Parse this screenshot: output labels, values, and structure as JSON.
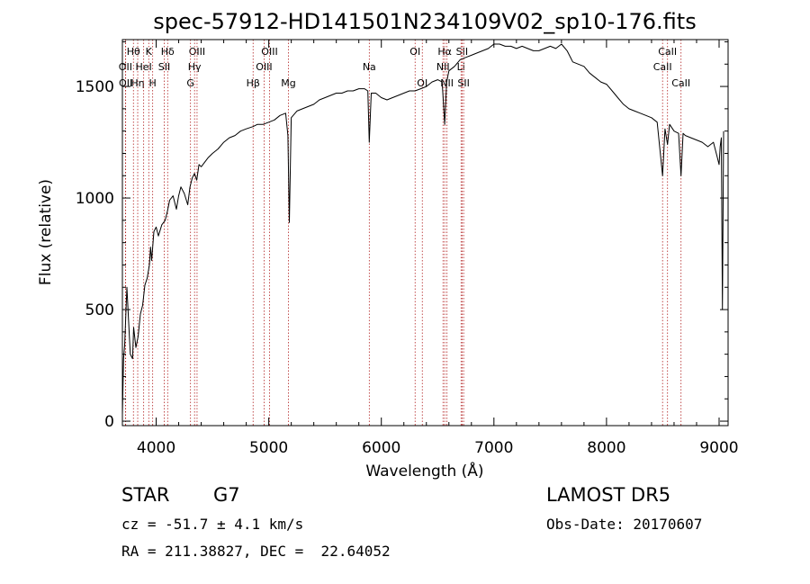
{
  "chart_data": {
    "type": "line",
    "title": "spec-57912-HD141501N234109V02_sp10-176.fits",
    "xlabel": "Wavelength (Å)",
    "ylabel": "Flux (relative)",
    "xlim": [
      3700,
      9080
    ],
    "ylim": [
      -20,
      1710
    ],
    "xticks": [
      4000,
      5000,
      6000,
      7000,
      8000,
      9000
    ],
    "yticks": [
      0,
      500,
      1000,
      1500
    ],
    "grid": false,
    "line_color": "#000000",
    "marker_color": "#b22222",
    "series": [
      {
        "x": [
          3700,
          3710,
          3720,
          3740,
          3760,
          3770,
          3790,
          3800,
          3820,
          3840,
          3860,
          3880,
          3900,
          3920,
          3940,
          3950,
          3960,
          3980,
          4000,
          4020,
          4050,
          4080,
          4100,
          4120,
          4150,
          4180,
          4200,
          4220,
          4250,
          4280,
          4300,
          4320,
          4340,
          4360,
          4380,
          4400,
          4430,
          4460,
          4500,
          4550,
          4600,
          4650,
          4700,
          4750,
          4800,
          4860,
          4900,
          4950,
          5000,
          5050,
          5100,
          5150,
          5170,
          5183,
          5200,
          5250,
          5300,
          5350,
          5400,
          5450,
          5500,
          5550,
          5600,
          5650,
          5700,
          5750,
          5800,
          5850,
          5880,
          5893,
          5910,
          5950,
          6000,
          6050,
          6100,
          6150,
          6200,
          6250,
          6300,
          6350,
          6400,
          6450,
          6500,
          6540,
          6563,
          6580,
          6600,
          6650,
          6700,
          6750,
          6800,
          6850,
          6900,
          6950,
          7000,
          7050,
          7100,
          7150,
          7200,
          7250,
          7300,
          7350,
          7400,
          7450,
          7500,
          7550,
          7600,
          7650,
          7700,
          7750,
          7800,
          7850,
          7900,
          7950,
          8000,
          8050,
          8100,
          8150,
          8200,
          8250,
          8300,
          8350,
          8400,
          8450,
          8498,
          8520,
          8542,
          8560,
          8600,
          8640,
          8662,
          8680,
          8700,
          8750,
          8800,
          8850,
          8900,
          8950,
          8980,
          9000,
          9010,
          9020,
          9030,
          9040
        ],
        "y": [
          30,
          280,
          340,
          600,
          400,
          300,
          280,
          420,
          330,
          380,
          480,
          520,
          610,
          640,
          700,
          780,
          720,
          850,
          870,
          830,
          880,
          900,
          940,
          990,
          1010,
          950,
          1010,
          1050,
          1020,
          970,
          1050,
          1090,
          1110,
          1080,
          1150,
          1140,
          1160,
          1180,
          1200,
          1220,
          1250,
          1270,
          1280,
          1300,
          1310,
          1320,
          1330,
          1330,
          1340,
          1350,
          1370,
          1380,
          1280,
          890,
          1360,
          1390,
          1400,
          1410,
          1420,
          1440,
          1450,
          1460,
          1470,
          1470,
          1480,
          1480,
          1490,
          1490,
          1480,
          1250,
          1470,
          1470,
          1450,
          1440,
          1450,
          1460,
          1470,
          1480,
          1480,
          1490,
          1500,
          1520,
          1530,
          1520,
          1330,
          1520,
          1570,
          1590,
          1620,
          1630,
          1640,
          1650,
          1660,
          1670,
          1690,
          1690,
          1680,
          1680,
          1670,
          1680,
          1670,
          1660,
          1660,
          1670,
          1680,
          1670,
          1690,
          1660,
          1610,
          1600,
          1590,
          1560,
          1540,
          1520,
          1510,
          1480,
          1450,
          1420,
          1400,
          1390,
          1380,
          1370,
          1360,
          1340,
          1100,
          1310,
          1240,
          1330,
          1300,
          1290,
          1100,
          1290,
          1280,
          1270,
          1260,
          1250,
          1230,
          1250,
          1190,
          1150,
          1230,
          1270,
          500,
          1300
        ]
      }
    ],
    "line_markers": [
      {
        "label": "Hθ",
        "wave": 3798,
        "row": 0
      },
      {
        "label": "OII",
        "wave": 3727,
        "row": 1
      },
      {
        "label": "OII",
        "wave": 3729,
        "row": 2
      },
      {
        "label": "Hη",
        "wave": 3836,
        "row": 2
      },
      {
        "label": "HeI",
        "wave": 3889,
        "row": 1
      },
      {
        "label": "K",
        "wave": 3934,
        "row": 0
      },
      {
        "label": "H",
        "wave": 3969,
        "row": 2
      },
      {
        "label": "Hδ",
        "wave": 4102,
        "row": 0
      },
      {
        "label": "SII",
        "wave": 4072,
        "row": 1
      },
      {
        "label": "OIII",
        "wave": 4363,
        "row": 0
      },
      {
        "label": "Hγ",
        "wave": 4341,
        "row": 1
      },
      {
        "label": "G",
        "wave": 4305,
        "row": 2
      },
      {
        "label": "Hβ",
        "wave": 4861,
        "row": 2
      },
      {
        "label": "OIII",
        "wave": 4959,
        "row": 1
      },
      {
        "label": "OIII",
        "wave": 5007,
        "row": 0
      },
      {
        "label": "Mg",
        "wave": 5175,
        "row": 2
      },
      {
        "label": "Na",
        "wave": 5893,
        "row": 1
      },
      {
        "label": "OI",
        "wave": 6300,
        "row": 0
      },
      {
        "label": "OI",
        "wave": 6364,
        "row": 2
      },
      {
        "label": "Hα",
        "wave": 6563,
        "row": 0
      },
      {
        "label": "NII",
        "wave": 6548,
        "row": 1
      },
      {
        "label": "NII",
        "wave": 6583,
        "row": 2
      },
      {
        "label": "SII",
        "wave": 6717,
        "row": 0
      },
      {
        "label": "Li",
        "wave": 6708,
        "row": 1
      },
      {
        "label": "SII",
        "wave": 6731,
        "row": 2
      },
      {
        "label": "CaII",
        "wave": 8542,
        "row": 0
      },
      {
        "label": "CaII",
        "wave": 8498,
        "row": 1
      },
      {
        "label": "CaII",
        "wave": 8662,
        "row": 2
      }
    ]
  },
  "info": {
    "obj_class": "STAR",
    "subclass": "G7",
    "survey": "LAMOST DR5",
    "cz": "cz = -51.7 ± 4.1 km/s",
    "obs_date": "Obs-Date: 20170607",
    "coords": "RA = 211.38827, DEC =  22.64052"
  }
}
